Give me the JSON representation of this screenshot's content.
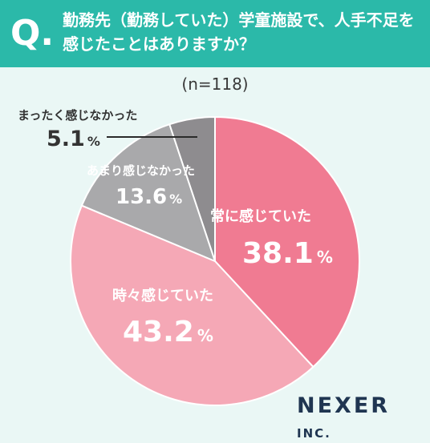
{
  "header": {
    "q_mark": "Q.",
    "question": "勤務先（勤務していた）学童施設で、人手不足を感じたことはありますか？"
  },
  "sample_label": "(n=118)",
  "brand": {
    "name": "NEXER",
    "suffix": "INC."
  },
  "colors": {
    "header_bg": "#2bb9a9",
    "page_bg": "#eaf7f5",
    "always": "#f07b92",
    "sometimes": "#f5a8b6",
    "rarely": "#a9a9ab",
    "never": "#8e8c8f"
  },
  "chart_data": {
    "type": "pie",
    "title": "",
    "n": 118,
    "slices": [
      {
        "label": "常に感じていた",
        "value": 38.1,
        "value_label": "38.1",
        "unit": "%",
        "color": "#f07b92"
      },
      {
        "label": "時々感じていた",
        "value": 43.2,
        "value_label": "43.2",
        "unit": "%",
        "color": "#f5a8b6"
      },
      {
        "label": "あまり感じなかった",
        "value": 13.6,
        "value_label": "13.6",
        "unit": "%",
        "color": "#a9a9ab"
      },
      {
        "label": "まったく感じなかった",
        "value": 5.1,
        "value_label": "5.1",
        "unit": "%",
        "color": "#8e8c8f"
      }
    ],
    "start_angle": "12 o'clock",
    "direction": "clockwise"
  }
}
